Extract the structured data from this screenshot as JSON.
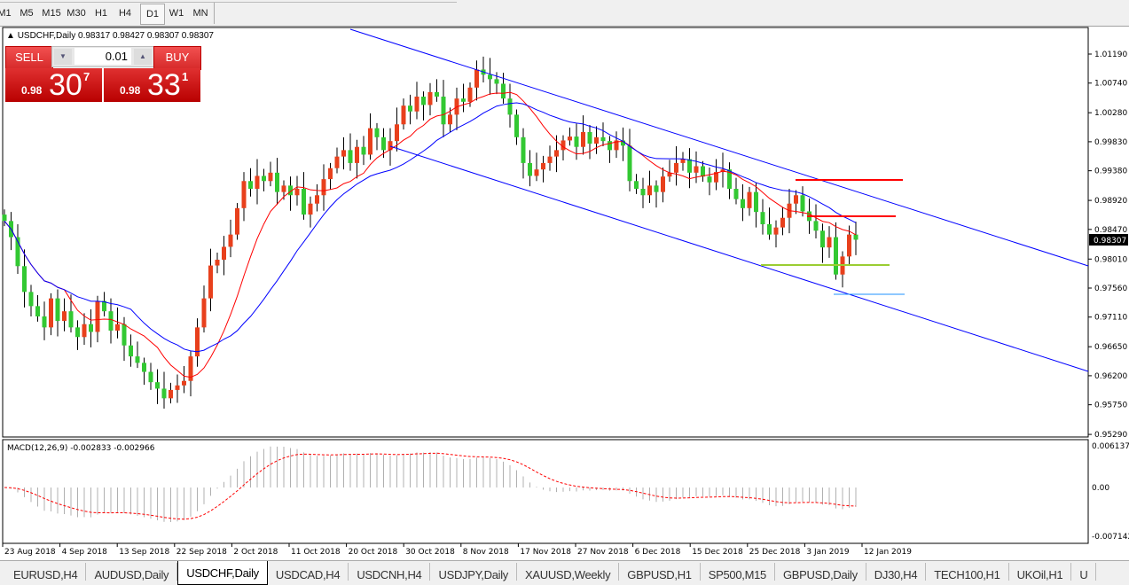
{
  "toolbar": {
    "timeframes": [
      "M1",
      "M5",
      "M15",
      "M30",
      "H1",
      "H4",
      "D1",
      "W1",
      "MN"
    ],
    "active": "D1"
  },
  "chart": {
    "symbol_line": "USDCHF,Daily",
    "ohlc": "0.98317 0.98427 0.98307 0.98307",
    "current_price": "0.98307"
  },
  "trade_panel": {
    "sell_label": "SELL",
    "buy_label": "BUY",
    "lot": "0.01",
    "sell_small": "0.98",
    "sell_big": "30",
    "sell_sup": "7",
    "buy_small": "0.98",
    "buy_big": "33",
    "buy_sup": "1"
  },
  "price_axis": [
    "1.01190",
    "1.00740",
    "1.00280",
    "0.99830",
    "0.99380",
    "0.98920",
    "0.98470",
    "0.98010",
    "0.97560",
    "0.97110",
    "0.96650",
    "0.96200",
    "0.95750",
    "0.95290"
  ],
  "macd": {
    "label": "MACD(12,26,9) -0.002833 -0.002966",
    "axis": [
      "0.006137",
      "0.00",
      "-0.007142"
    ]
  },
  "date_axis": [
    "23 Aug 2018",
    "4 Sep 2018",
    "13 Sep 2018",
    "22 Sep 2018",
    "2 Oct 2018",
    "11 Oct 2018",
    "20 Oct 2018",
    "30 Oct 2018",
    "8 Nov 2018",
    "17 Nov 2018",
    "27 Nov 2018",
    "6 Dec 2018",
    "15 Dec 2018",
    "25 Dec 2018",
    "3 Jan 2019",
    "12 Jan 2019"
  ],
  "colors": {
    "bull": "#e8401c",
    "bear": "#32c832",
    "ma_fast": "#ff0000",
    "ma_slow": "#0000ff",
    "channel": "#0000ff",
    "resistance": "#ff0000",
    "support": "#9acd32"
  },
  "chart_data": {
    "type": "candlestick",
    "symbol": "USDCHF",
    "timeframe": "Daily",
    "ylim": [
      0.9529,
      1.0119
    ],
    "close": [
      0.986,
      0.9835,
      0.979,
      0.975,
      0.9728,
      0.9712,
      0.9695,
      0.974,
      0.9705,
      0.972,
      0.9695,
      0.968,
      0.97,
      0.9688,
      0.9736,
      0.972,
      0.969,
      0.97,
      0.9667,
      0.965,
      0.964,
      0.9626,
      0.961,
      0.96,
      0.9585,
      0.9598,
      0.9605,
      0.9612,
      0.965,
      0.9695,
      0.974,
      0.9791,
      0.98,
      0.982,
      0.9839,
      0.988,
      0.9922,
      0.991,
      0.993,
      0.9922,
      0.9935,
      0.9905,
      0.9915,
      0.99,
      0.991,
      0.987,
      0.9887,
      0.99,
      0.9925,
      0.9942,
      0.996,
      0.997,
      0.995,
      0.9975,
      0.9963,
      1.0004,
      0.999,
      0.997,
      0.9984,
      1.001,
      1.0039,
      1.003,
      1.0053,
      1.004,
      1.006,
      1.0053,
      1.001,
      1.0025,
      1.005,
      1.0045,
      1.0067,
      1.0095,
      1.0087,
      1.008,
      1.0073,
      1.005,
      1.0025,
      0.999,
      0.995,
      0.993,
      0.994,
      0.995,
      0.996,
      0.997,
      0.9985,
      0.9991,
      0.9975,
      0.9998,
      0.998,
      0.999,
      0.9984,
      0.997,
      0.9985,
      0.9977,
      0.9922,
      0.991,
      0.99,
      0.9915,
      0.9905,
      0.9929,
      0.9935,
      0.995,
      0.9956,
      0.9935,
      0.9945,
      0.9929,
      0.992,
      0.9936,
      0.994,
      0.991,
      0.9894,
      0.988,
      0.9905,
      0.9874,
      0.9855,
      0.9839,
      0.985,
      0.9865,
      0.9887,
      0.99,
      0.9875,
      0.986,
      0.9845,
      0.9819,
      0.9835,
      0.9777,
      0.9805,
      0.9839,
      0.9831
    ]
  },
  "tabs": [
    "EURUSD,H4",
    "AUDUSD,Daily",
    "USDCHF,Daily",
    "USDCAD,H4",
    "USDCNH,H4",
    "USDJPY,Daily",
    "XAUUSD,Weekly",
    "GBPUSD,H1",
    "SP500,M15",
    "GBPUSD,Daily",
    "DJ30,H4",
    "TECH100,H1",
    "UKOil,H1",
    "U"
  ],
  "active_tab": "USDCHF,Daily"
}
